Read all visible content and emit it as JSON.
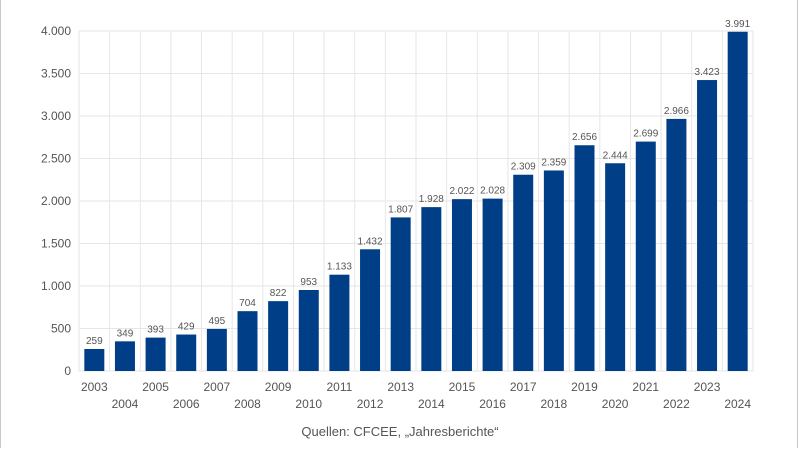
{
  "chart_data": {
    "type": "bar",
    "title": "",
    "xlabel": "",
    "ylabel": "",
    "categories": [
      "2003",
      "2004",
      "2005",
      "2006",
      "2007",
      "2008",
      "2009",
      "2010",
      "2011",
      "2012",
      "2013",
      "2014",
      "2015",
      "2016",
      "2017",
      "2018",
      "2019",
      "2020",
      "2021",
      "2022",
      "2023",
      "2024"
    ],
    "values": [
      259,
      349,
      393,
      429,
      495,
      704,
      822,
      953,
      1133,
      1432,
      1807,
      1928,
      2022,
      2028,
      2309,
      2359,
      2656,
      2444,
      2699,
      2966,
      3423,
      3991
    ],
    "value_labels": [
      "259",
      "349",
      "393",
      "429",
      "495",
      "704",
      "822",
      "953",
      "1.133",
      "1.432",
      "1.807",
      "1.928",
      "2.022",
      "2.028",
      "2.309",
      "2.359",
      "2.656",
      "2.444",
      "2.699",
      "2.966",
      "3.423",
      "3.991"
    ],
    "ylim": [
      0,
      4000
    ],
    "y_ticks": [
      0,
      500,
      1000,
      1500,
      2000,
      2500,
      3000,
      3500,
      4000
    ],
    "y_tick_labels": [
      "0",
      "500",
      "1.000",
      "1.500",
      "2.000",
      "2.500",
      "3.000",
      "3.500",
      "4.000"
    ],
    "grid": true,
    "bar_color": "#003f87",
    "gridline_color": "#e6e6e6"
  },
  "source": "Quellen: CFCEE, „Jahresberichte“"
}
